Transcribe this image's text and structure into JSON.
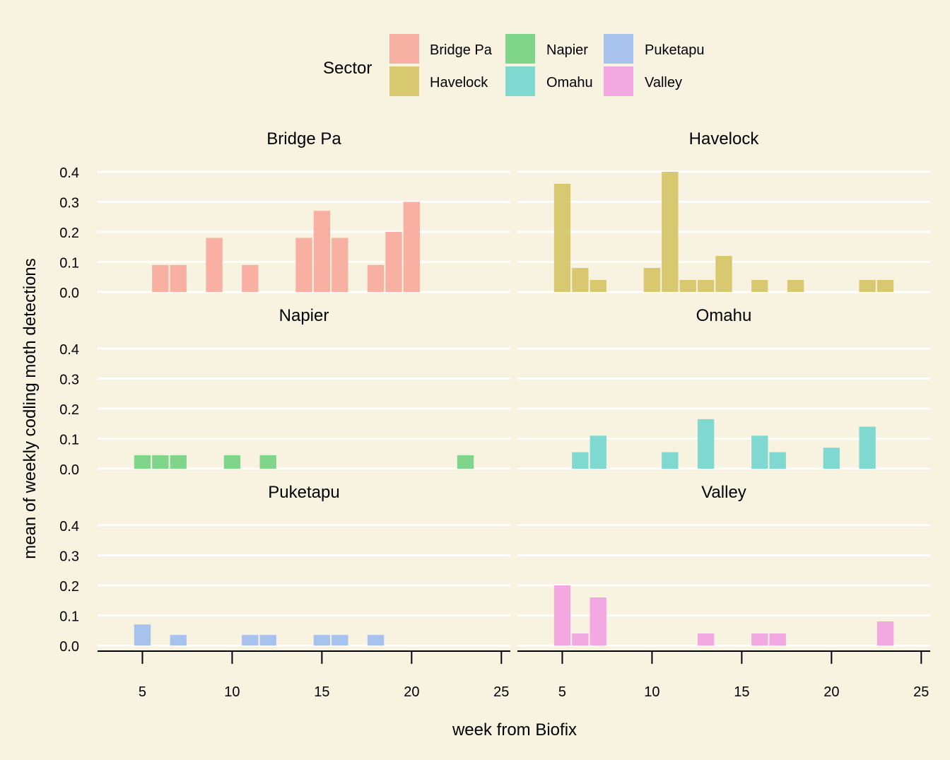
{
  "chart_data": {
    "type": "bar",
    "xlabel": "week from Biofix",
    "ylabel": "mean of weekly codling moth detections",
    "xlim": [
      2.5,
      25.5
    ],
    "ylim": [
      0,
      0.4
    ],
    "xticks": [
      5,
      10,
      15,
      20,
      25
    ],
    "yticks": [
      0.0,
      0.1,
      0.2,
      0.3,
      0.4
    ],
    "ytick_labels": [
      "0.0",
      "0.1",
      "0.2",
      "0.3",
      "0.4"
    ],
    "legend": {
      "title": "Sector",
      "position": "top",
      "entries": [
        "Bridge Pa",
        "Havelock",
        "Napier",
        "Omahu",
        "Puketapu",
        "Valley"
      ]
    },
    "colors": {
      "Bridge Pa": "#f8b0a2",
      "Havelock": "#d8c870",
      "Napier": "#7fd68a",
      "Omahu": "#7fd9d1",
      "Puketapu": "#a8c2ee",
      "Valley": "#f2a8e0"
    },
    "facets": [
      {
        "name": "Bridge Pa",
        "weeks": [
          6,
          7,
          9,
          11,
          14,
          15,
          16,
          18,
          19,
          20
        ],
        "values": [
          0.09,
          0.09,
          0.18,
          0.09,
          0.18,
          0.27,
          0.18,
          0.09,
          0.2,
          0.3
        ]
      },
      {
        "name": "Havelock",
        "weeks": [
          5,
          6,
          7,
          10,
          11,
          12,
          13,
          14,
          16,
          18,
          22,
          23
        ],
        "values": [
          0.36,
          0.08,
          0.04,
          0.08,
          0.4,
          0.04,
          0.04,
          0.12,
          0.04,
          0.04,
          0.04,
          0.04
        ]
      },
      {
        "name": "Napier",
        "weeks": [
          5,
          6,
          7,
          10,
          12,
          23
        ],
        "values": [
          0.045,
          0.045,
          0.045,
          0.045,
          0.045,
          0.045
        ]
      },
      {
        "name": "Omahu",
        "weeks": [
          6,
          7,
          11,
          13,
          16,
          17,
          20,
          22
        ],
        "values": [
          0.055,
          0.11,
          0.055,
          0.165,
          0.11,
          0.055,
          0.07,
          0.14
        ]
      },
      {
        "name": "Puketapu",
        "weeks": [
          5,
          7,
          11,
          12,
          15,
          16,
          18
        ],
        "values": [
          0.07,
          0.035,
          0.035,
          0.035,
          0.035,
          0.035,
          0.035
        ]
      },
      {
        "name": "Valley",
        "weeks": [
          5,
          6,
          7,
          13,
          16,
          17,
          23
        ],
        "values": [
          0.2,
          0.04,
          0.16,
          0.04,
          0.04,
          0.04,
          0.08
        ]
      }
    ]
  }
}
